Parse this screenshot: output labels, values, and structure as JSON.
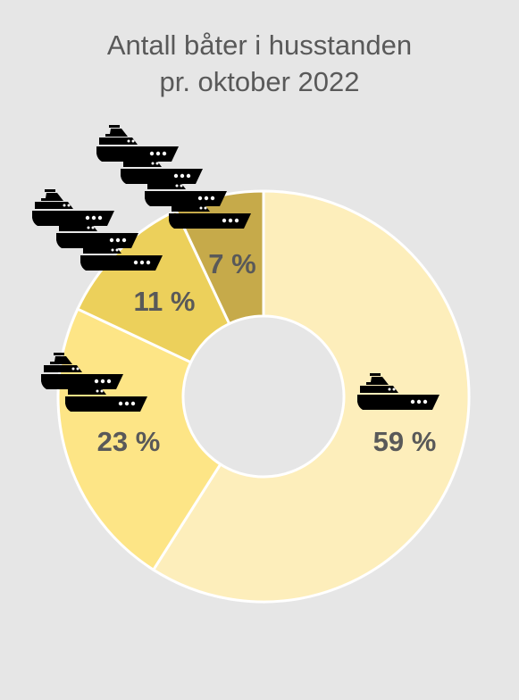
{
  "title_lines": [
    "Antall båter i husstanden",
    "pr. oktober 2022"
  ],
  "colors": {
    "background": "#e6e6e6",
    "title_text": "#595959",
    "label_text": "#595959",
    "icon": "#000000",
    "separator": "#ffffff"
  },
  "icon_name": "boat-icon",
  "chart_data": {
    "type": "pie",
    "donut": true,
    "title": "Antall båter i husstanden pr. oktober 2022",
    "slices": [
      {
        "label": "59 %",
        "value": 59,
        "boats": 1,
        "color": "#fdeebb"
      },
      {
        "label": "23 %",
        "value": 23,
        "boats": 2,
        "color": "#fde586"
      },
      {
        "label": "11 %",
        "value": 11,
        "boats": 3,
        "color": "#ecd05b"
      },
      {
        "label": "7 %",
        "value": 7,
        "boats": 4,
        "color": "#c6aa4a"
      }
    ],
    "legend": "none"
  }
}
